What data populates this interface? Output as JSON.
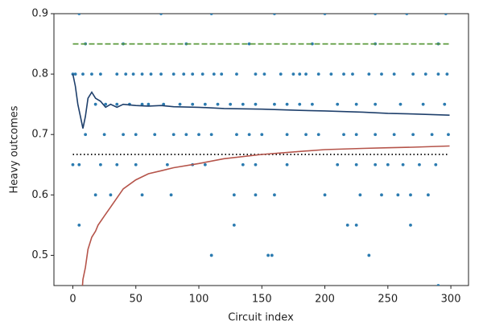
{
  "chart_data": {
    "type": "scatter",
    "xlabel": "Circuit index",
    "ylabel": "Heavy outcomes",
    "xlim": [
      -15,
      314
    ],
    "ylim": [
      0.45,
      0.9
    ],
    "xticks": [
      0,
      50,
      100,
      150,
      200,
      250,
      300
    ],
    "yticks": [
      0.5,
      0.6,
      0.7,
      0.8,
      0.9
    ],
    "color": "#2b7bb0",
    "x": [
      5,
      70,
      110,
      160,
      200,
      240,
      265,
      296,
      10,
      40,
      90,
      140,
      190,
      240,
      290,
      0,
      2,
      8,
      15,
      22,
      35,
      42,
      48,
      55,
      62,
      70,
      80,
      88,
      95,
      103,
      112,
      118,
      130,
      145,
      152,
      165,
      175,
      180,
      185,
      195,
      205,
      215,
      222,
      235,
      245,
      255,
      270,
      280,
      290,
      297,
      18,
      26,
      35,
      45,
      55,
      60,
      72,
      85,
      95,
      105,
      115,
      125,
      135,
      145,
      160,
      170,
      180,
      190,
      210,
      225,
      240,
      260,
      278,
      295,
      10,
      25,
      40,
      50,
      65,
      80,
      90,
      100,
      110,
      130,
      140,
      150,
      170,
      185,
      195,
      215,
      225,
      240,
      255,
      270,
      285,
      298,
      0,
      5,
      22,
      35,
      50,
      75,
      95,
      105,
      135,
      145,
      170,
      210,
      225,
      240,
      250,
      262,
      275,
      288,
      18,
      30,
      55,
      78,
      128,
      145,
      160,
      200,
      228,
      245,
      258,
      268,
      282,
      5,
      128,
      218,
      225,
      268,
      110,
      155,
      158,
      235,
      290
    ],
    "values": [
      0.9,
      0.9,
      0.9,
      0.9,
      0.9,
      0.9,
      0.9,
      0.9,
      0.85,
      0.85,
      0.85,
      0.85,
      0.85,
      0.85,
      0.85,
      0.8,
      0.8,
      0.8,
      0.8,
      0.8,
      0.8,
      0.8,
      0.8,
      0.8,
      0.8,
      0.8,
      0.8,
      0.8,
      0.8,
      0.8,
      0.8,
      0.8,
      0.8,
      0.8,
      0.8,
      0.8,
      0.8,
      0.8,
      0.8,
      0.8,
      0.8,
      0.8,
      0.8,
      0.8,
      0.8,
      0.8,
      0.8,
      0.8,
      0.8,
      0.8,
      0.75,
      0.75,
      0.75,
      0.75,
      0.75,
      0.75,
      0.75,
      0.75,
      0.75,
      0.75,
      0.75,
      0.75,
      0.75,
      0.75,
      0.75,
      0.75,
      0.75,
      0.75,
      0.75,
      0.75,
      0.75,
      0.75,
      0.75,
      0.75,
      0.7,
      0.7,
      0.7,
      0.7,
      0.7,
      0.7,
      0.7,
      0.7,
      0.7,
      0.7,
      0.7,
      0.7,
      0.7,
      0.7,
      0.7,
      0.7,
      0.7,
      0.7,
      0.7,
      0.7,
      0.7,
      0.7,
      0.65,
      0.65,
      0.65,
      0.65,
      0.65,
      0.65,
      0.65,
      0.65,
      0.65,
      0.65,
      0.65,
      0.65,
      0.65,
      0.65,
      0.65,
      0.65,
      0.65,
      0.65,
      0.6,
      0.6,
      0.6,
      0.6,
      0.6,
      0.6,
      0.6,
      0.6,
      0.6,
      0.6,
      0.6,
      0.6,
      0.6,
      0.55,
      0.55,
      0.55,
      0.55,
      0.55,
      0.5,
      0.5,
      0.5,
      0.5,
      0.45
    ],
    "lines": [
      {
        "color": "#000000",
        "style": "dotted",
        "x": [
          0,
          299
        ],
        "values": [
          0.667,
          0.667
        ]
      },
      {
        "color": "#5b9a3c",
        "style": "dashed",
        "x": [
          0,
          299
        ],
        "values": [
          0.85,
          0.85
        ]
      },
      {
        "color": "#1e3f6b",
        "style": "solid",
        "x": [
          0,
          2,
          4,
          6,
          8,
          10,
          12,
          15,
          18,
          22,
          26,
          30,
          35,
          40,
          50,
          60,
          70,
          80,
          100,
          120,
          150,
          180,
          200,
          230,
          250,
          270,
          299
        ],
        "values": [
          0.8,
          0.78,
          0.75,
          0.73,
          0.71,
          0.73,
          0.76,
          0.77,
          0.76,
          0.755,
          0.745,
          0.75,
          0.745,
          0.75,
          0.748,
          0.747,
          0.748,
          0.746,
          0.745,
          0.743,
          0.742,
          0.74,
          0.739,
          0.737,
          0.735,
          0.734,
          0.732
        ]
      },
      {
        "color": "#b5544a",
        "style": "solid",
        "x": [
          7,
          8,
          10,
          12,
          15,
          18,
          20,
          25,
          30,
          35,
          40,
          50,
          60,
          70,
          80,
          100,
          120,
          150,
          180,
          200,
          230,
          250,
          270,
          299
        ],
        "values": [
          0.43,
          0.46,
          0.48,
          0.51,
          0.53,
          0.54,
          0.55,
          0.565,
          0.58,
          0.595,
          0.61,
          0.625,
          0.635,
          0.64,
          0.645,
          0.652,
          0.66,
          0.667,
          0.672,
          0.675,
          0.677,
          0.678,
          0.679,
          0.681
        ]
      }
    ]
  }
}
